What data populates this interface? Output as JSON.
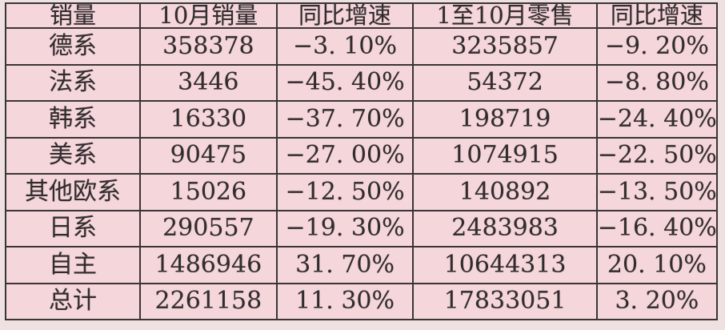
{
  "table": {
    "columns": [
      "销量",
      "10月销量",
      "同比增速",
      "1至10月零售",
      "同比增速"
    ],
    "rows": [
      [
        "德系",
        "358378",
        "−3. 10%",
        "3235857",
        "−9. 20%"
      ],
      [
        "法系",
        "3446",
        "−45. 40%",
        "54372",
        "−8. 80%"
      ],
      [
        "韩系",
        "16330",
        "−37. 70%",
        "198719",
        "−24. 40%"
      ],
      [
        "美系",
        "90475",
        "−27. 00%",
        "1074915",
        "−22. 50%"
      ],
      [
        "其他欧系",
        "15026",
        "−12. 50%",
        "140892",
        "−13. 50%"
      ],
      [
        "日系",
        "290557",
        "−19. 30%",
        "2483983",
        "−16. 40%"
      ],
      [
        "自主",
        "1486946",
        "31. 70%",
        "10644313",
        "20. 10%"
      ],
      [
        "总计",
        "2261158",
        "11. 30%",
        "17833051",
        "3. 20%"
      ]
    ]
  },
  "colors": {
    "cell_background": "#f5d6db",
    "outer_background": "#efe1e1",
    "grid_border": "#3a3536",
    "text": "#312d2e"
  },
  "chart_data": {
    "type": "table",
    "title": "",
    "columns": [
      "销量",
      "10月销量",
      "同比增速",
      "1至10月零售",
      "同比增速"
    ],
    "rows": [
      {
        "segment": "德系",
        "oct_sales": 358378,
        "oct_yoy_pct": -3.1,
        "jan_to_oct_retail": 3235857,
        "jan_to_oct_yoy_pct": -9.2
      },
      {
        "segment": "法系",
        "oct_sales": 3446,
        "oct_yoy_pct": -45.4,
        "jan_to_oct_retail": 54372,
        "jan_to_oct_yoy_pct": -8.8
      },
      {
        "segment": "韩系",
        "oct_sales": 16330,
        "oct_yoy_pct": -37.7,
        "jan_to_oct_retail": 198719,
        "jan_to_oct_yoy_pct": -24.4
      },
      {
        "segment": "美系",
        "oct_sales": 90475,
        "oct_yoy_pct": -27.0,
        "jan_to_oct_retail": 1074915,
        "jan_to_oct_yoy_pct": -22.5
      },
      {
        "segment": "其他欧系",
        "oct_sales": 15026,
        "oct_yoy_pct": -12.5,
        "jan_to_oct_retail": 140892,
        "jan_to_oct_yoy_pct": -13.5
      },
      {
        "segment": "日系",
        "oct_sales": 290557,
        "oct_yoy_pct": -19.3,
        "jan_to_oct_retail": 2483983,
        "jan_to_oct_yoy_pct": -16.4
      },
      {
        "segment": "自主",
        "oct_sales": 1486946,
        "oct_yoy_pct": 31.7,
        "jan_to_oct_retail": 10644313,
        "jan_to_oct_yoy_pct": 20.1
      },
      {
        "segment": "总计",
        "oct_sales": 2261158,
        "oct_yoy_pct": 11.3,
        "jan_to_oct_retail": 17833051,
        "jan_to_oct_yoy_pct": 3.2
      }
    ]
  }
}
